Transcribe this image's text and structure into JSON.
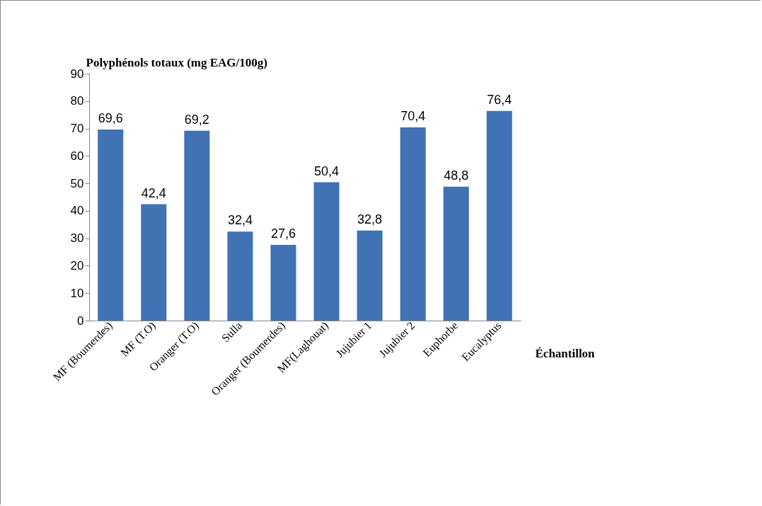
{
  "chart_data": {
    "type": "bar",
    "xlabel": "Échantillon",
    "ylabel": "Polyphénols totaux (mg EAG/100g)",
    "categories": [
      "MF (Boumerdes)",
      "MF (T.O)",
      "Oranger (T.O)",
      "Sulla",
      "Oranger (Boumerdes)",
      "MF(Laghouat)",
      "Jujubier 1",
      "Jujubier 2",
      "Euphorbe",
      "Eucalyptus"
    ],
    "values": [
      69.6,
      42.4,
      69.2,
      32.4,
      27.6,
      50.4,
      32.8,
      70.4,
      48.8,
      76.4
    ],
    "value_labels": [
      "69,6",
      "42,4",
      "69,2",
      "32,4",
      "27,6",
      "50,4",
      "32,8",
      "70,4",
      "48,8",
      "76,4"
    ],
    "color": "#4072b4",
    "ylim": [
      0,
      90
    ],
    "yticks": [
      0,
      10,
      20,
      30,
      40,
      50,
      60,
      70,
      80,
      90
    ]
  }
}
